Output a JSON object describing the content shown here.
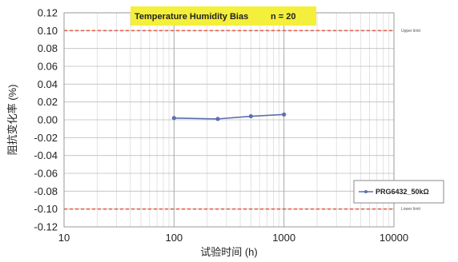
{
  "chart_data": {
    "type": "line",
    "title": "Temperature Humidity Bias",
    "annotation": "n = 20",
    "xlabel": "试验时间 (h)",
    "ylabel": "阻抗变化率 (%)",
    "x_scale": "log",
    "xlim": [
      10,
      10000
    ],
    "ylim": [
      -0.12,
      0.12
    ],
    "x_ticks": [
      "10",
      "100",
      "1000",
      "10000"
    ],
    "y_ticks": [
      "0.12",
      "0.10",
      "0.08",
      "0.06",
      "0.04",
      "0.02",
      "0.00",
      "-0.02",
      "-0.04",
      "-0.06",
      "-0.08",
      "-0.10",
      "-0.12"
    ],
    "y_tick_values": [
      0.12,
      0.1,
      0.08,
      0.06,
      0.04,
      0.02,
      0.0,
      -0.02,
      -0.04,
      -0.06,
      -0.08,
      -0.1,
      -0.12
    ],
    "grid": true,
    "legend_position": "bottom-right",
    "series": [
      {
        "name": "PRG6432_50kΩ",
        "x": [
          100,
          250,
          500,
          1000
        ],
        "y": [
          0.002,
          0.001,
          0.004,
          0.006
        ],
        "color": "#5a6fae"
      }
    ],
    "limit_lines": [
      {
        "label": "Upper limit",
        "value": 0.1,
        "color": "#e8604a"
      },
      {
        "label": "Lower limit",
        "value": -0.1,
        "color": "#e8604a"
      }
    ],
    "title_bg": "#f4ef3a"
  }
}
